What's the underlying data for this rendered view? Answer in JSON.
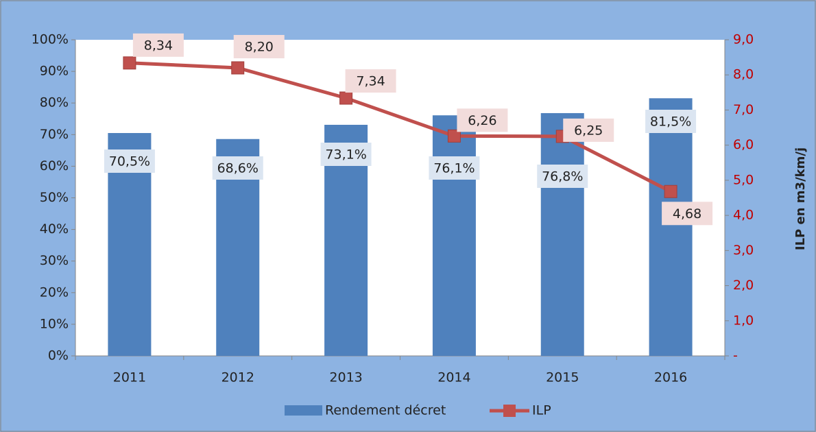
{
  "chart_data": {
    "type": "bar",
    "categories": [
      "2011",
      "2012",
      "2013",
      "2014",
      "2015",
      "2016"
    ],
    "series": [
      {
        "name": "Rendement décret",
        "type": "bar",
        "color": "#4f81bd",
        "values": [
          70.5,
          68.6,
          73.1,
          76.1,
          76.8,
          81.5
        ],
        "value_labels": [
          "70,5%",
          "68,6%",
          "73,1%",
          "76,1%",
          "76,8%",
          "81,5%"
        ]
      },
      {
        "name": "ILP",
        "type": "line",
        "axis": "y2",
        "color": "#c0504d",
        "values": [
          8.34,
          8.2,
          7.34,
          6.26,
          6.25,
          4.68
        ],
        "value_labels": [
          "8,34",
          "8,20",
          "7,34",
          "6,26",
          "6,25",
          "4,68"
        ]
      }
    ],
    "ylim": [
      0,
      100
    ],
    "yticks": [
      {
        "value": 0,
        "label": "0%"
      },
      {
        "value": 10,
        "label": "10%"
      },
      {
        "value": 20,
        "label": "20%"
      },
      {
        "value": 30,
        "label": "30%"
      },
      {
        "value": 40,
        "label": "40%"
      },
      {
        "value": 50,
        "label": "50%"
      },
      {
        "value": 60,
        "label": "60%"
      },
      {
        "value": 70,
        "label": "70%"
      },
      {
        "value": 80,
        "label": "80%"
      },
      {
        "value": 90,
        "label": "90%"
      },
      {
        "value": 100,
        "label": "100%"
      }
    ],
    "y2lim": [
      0,
      9
    ],
    "y2ticks": [
      {
        "value": 0,
        "label": "-"
      },
      {
        "value": 1,
        "label": "1,0"
      },
      {
        "value": 2,
        "label": "2,0"
      },
      {
        "value": 3,
        "label": "3,0"
      },
      {
        "value": 4,
        "label": "4,0"
      },
      {
        "value": 5,
        "label": "5,0"
      },
      {
        "value": 6,
        "label": "6,0"
      },
      {
        "value": 7,
        "label": "7,0"
      },
      {
        "value": 8,
        "label": "8,0"
      },
      {
        "value": 9,
        "label": "9,0"
      }
    ],
    "y2label": "ILP en m3/km/j",
    "grid": false,
    "legend": "bottom"
  }
}
